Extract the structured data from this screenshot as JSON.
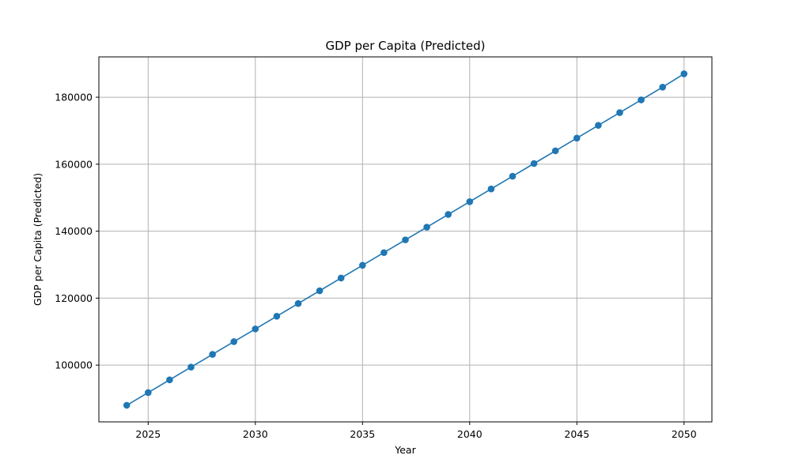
{
  "chart_data": {
    "type": "line",
    "title": "GDP per Capita (Predicted)",
    "xlabel": "Year",
    "ylabel": "GDP per Capita (Predicted)",
    "x": [
      2024,
      2025,
      2026,
      2027,
      2028,
      2029,
      2030,
      2031,
      2032,
      2033,
      2034,
      2035,
      2036,
      2037,
      2038,
      2039,
      2040,
      2041,
      2042,
      2043,
      2044,
      2045,
      2046,
      2047,
      2048,
      2049,
      2050
    ],
    "series": [
      {
        "values": [
          88000,
          91800,
          95600,
          99400,
          103200,
          107000,
          110800,
          114600,
          118400,
          122200,
          126000,
          129800,
          133600,
          137400,
          141200,
          145000,
          148800,
          152600,
          156400,
          160200,
          164000,
          167800,
          171600,
          175400,
          179200,
          183000,
          187000
        ],
        "color": "#1f77b4",
        "marker": "circle"
      }
    ],
    "xlim": [
      2022.7,
      2051.3
    ],
    "ylim": [
      83050,
      192050
    ],
    "xticks": [
      "2025",
      "2030",
      "2035",
      "2040",
      "2045",
      "2050"
    ],
    "yticks": [
      "100000",
      "120000",
      "140000",
      "160000",
      "180000"
    ],
    "grid": true,
    "legend": "none"
  }
}
